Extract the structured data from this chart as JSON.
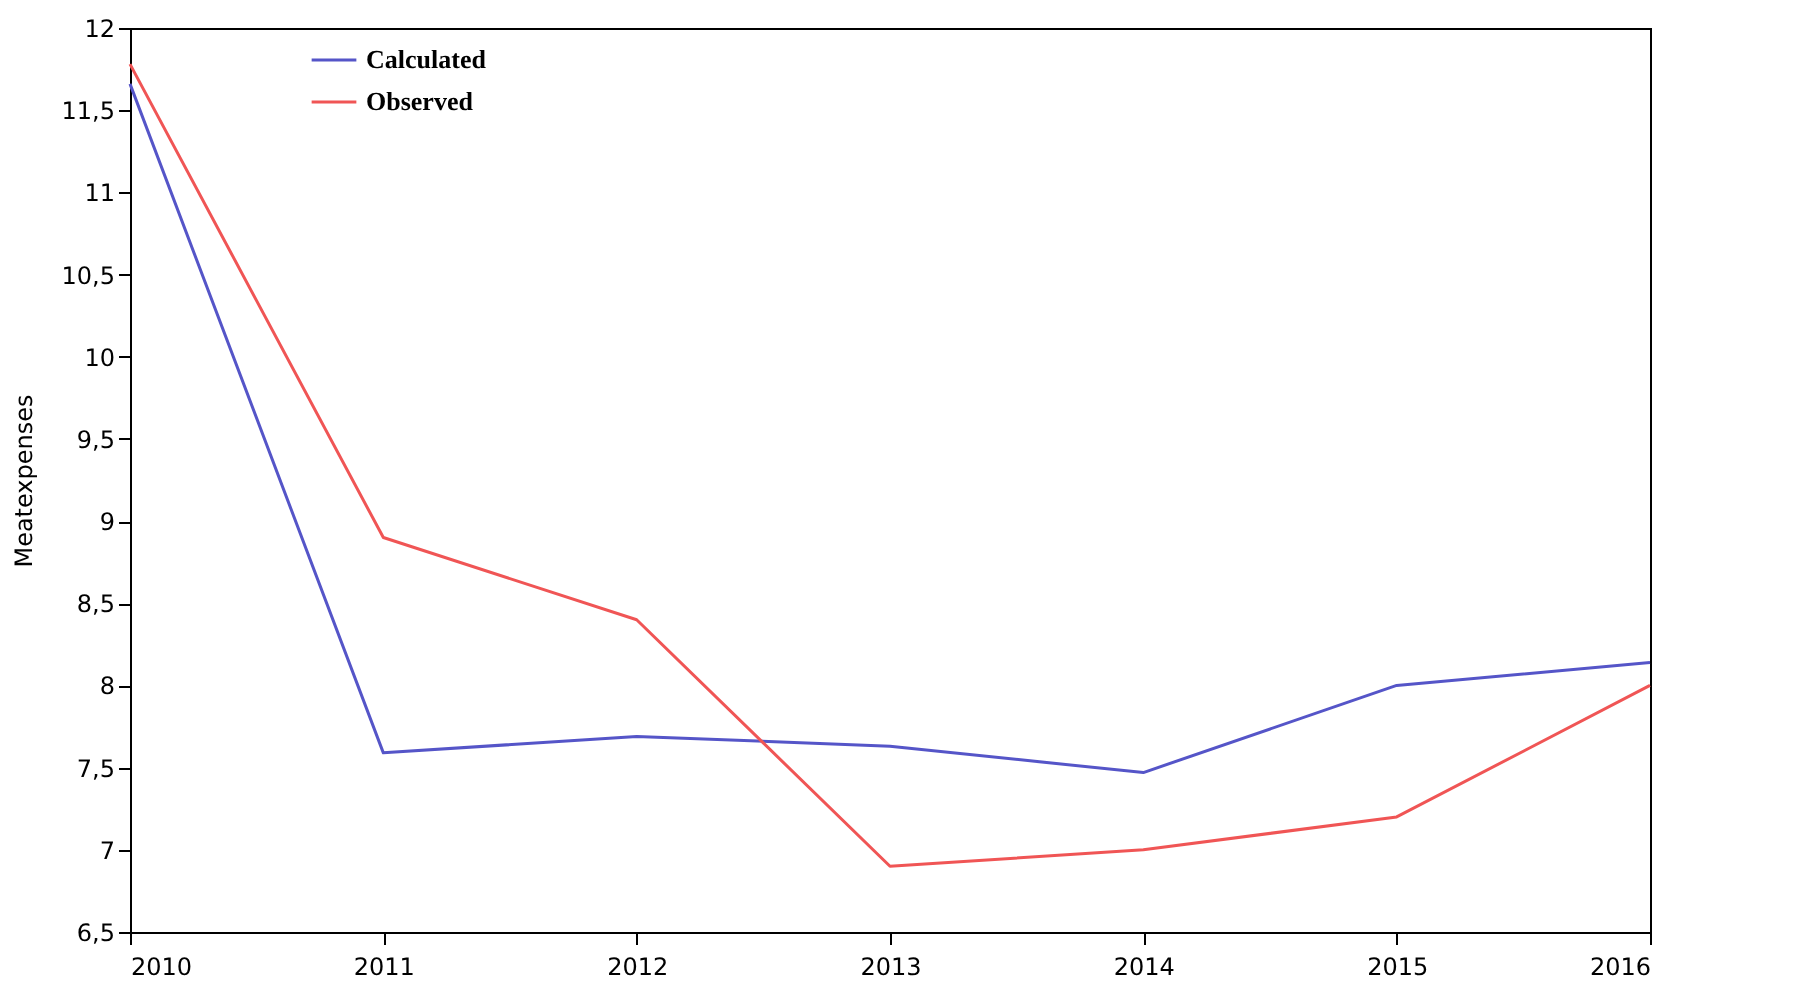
{
  "chart_data": {
    "type": "line",
    "ylabel": "Meatexpenses",
    "x": [
      2010,
      2011,
      2012,
      2013,
      2014,
      2015,
      2016
    ],
    "series": [
      {
        "name": "Calculated",
        "color": "#5555c8",
        "values": [
          11.66,
          7.59,
          7.69,
          7.63,
          7.47,
          8.0,
          8.14
        ]
      },
      {
        "name": "Observed",
        "color": "#f05555",
        "values": [
          11.78,
          8.9,
          8.4,
          6.9,
          7.0,
          7.2,
          8.0
        ]
      }
    ],
    "xlim": [
      2010,
      2016
    ],
    "xticks": [
      2010,
      2011,
      2012,
      2013,
      2014,
      2015,
      2016
    ],
    "ylim": [
      6.5,
      12
    ],
    "yticks": [
      {
        "value": 6.5,
        "label": "6,5"
      },
      7,
      {
        "value": 7.5,
        "label": "7,5"
      },
      8,
      {
        "value": 8.5,
        "label": "8,5"
      },
      9,
      {
        "value": 9.5,
        "label": "9,5"
      },
      10,
      {
        "value": 10.5,
        "label": "10,5"
      },
      11,
      {
        "value": 11.5,
        "label": "11,5"
      },
      12
    ],
    "grid": false,
    "legend": "top left",
    "marker": "none",
    "line_style": "solid"
  }
}
